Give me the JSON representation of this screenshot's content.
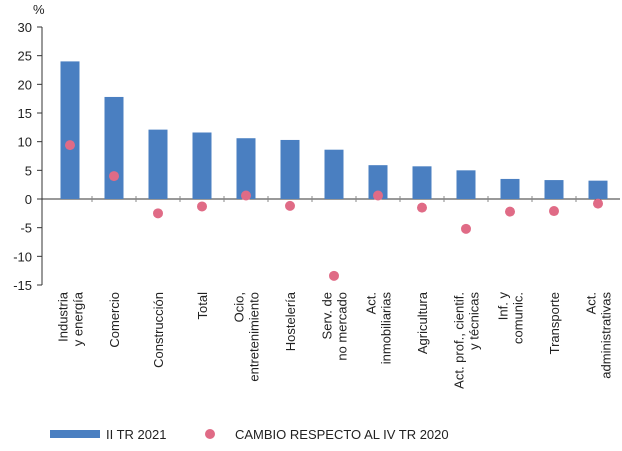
{
  "chart_data": {
    "type": "bar_dot",
    "y_label": "%",
    "categories": [
      "Industria\ny energía",
      "Comercio",
      "Construcción",
      "Total",
      "Ocio,\nentretenimiento",
      "Hostelería",
      "Serv. de\nno mercado",
      "Act.\ninmobiliarias",
      "Agricultura",
      "Act. prof., cientif.\ny técnicas",
      "Inf. y\ncomunic.",
      "Transporte",
      "Act.\nadministrativas"
    ],
    "series": [
      {
        "name": "II TR 2021",
        "kind": "bar",
        "color": "#4a7fc1",
        "values": [
          24,
          17.8,
          12.1,
          11.6,
          10.6,
          10.3,
          8.6,
          5.9,
          5.7,
          5.0,
          3.5,
          3.3,
          3.2
        ]
      },
      {
        "name": "CAMBIO RESPECTO AL IV TR 2020",
        "kind": "dot",
        "color": "#e06b86",
        "values": [
          9.4,
          4.0,
          -2.5,
          -1.3,
          0.6,
          -1.2,
          -13.4,
          0.6,
          -1.5,
          -5.2,
          -2.2,
          -2.1,
          -0.8
        ]
      }
    ],
    "ylim": [
      -15,
      30
    ],
    "yticks": [
      -15,
      -10,
      -5,
      0,
      5,
      10,
      15,
      20,
      25,
      30
    ]
  }
}
